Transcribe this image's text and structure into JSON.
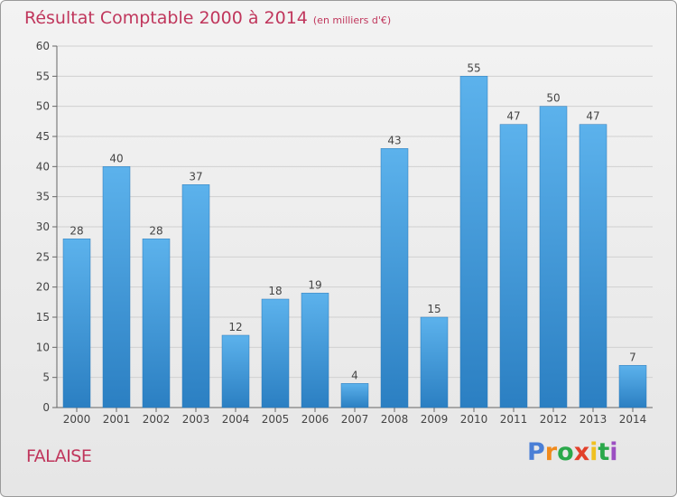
{
  "chart_data": {
    "type": "bar",
    "title": "Résultat Comptable 2000 à 2014",
    "subtitle": "(en milliers d'€)",
    "categories": [
      "2000",
      "2001",
      "2002",
      "2003",
      "2004",
      "2005",
      "2006",
      "2007",
      "2008",
      "2009",
      "2010",
      "2011",
      "2012",
      "2013",
      "2014"
    ],
    "values": [
      28,
      40,
      28,
      37,
      12,
      18,
      19,
      4,
      43,
      15,
      55,
      47,
      50,
      47,
      7
    ],
    "ylim": [
      0,
      60
    ],
    "yticks": [
      0,
      5,
      10,
      15,
      20,
      25,
      30,
      35,
      40,
      45,
      50,
      55,
      60
    ],
    "xlabel": "",
    "ylabel": "",
    "grid": true,
    "bar_color": "#3f96dc"
  },
  "commune": "FALAISE",
  "logo": {
    "letters": [
      "P",
      "r",
      "o",
      "x",
      "i",
      "t",
      "i"
    ],
    "colors": [
      "#4a7fd6",
      "#f08a1c",
      "#2aa84a",
      "#e2402a",
      "#f0c020",
      "#2aa84a",
      "#9b4fc2"
    ]
  }
}
